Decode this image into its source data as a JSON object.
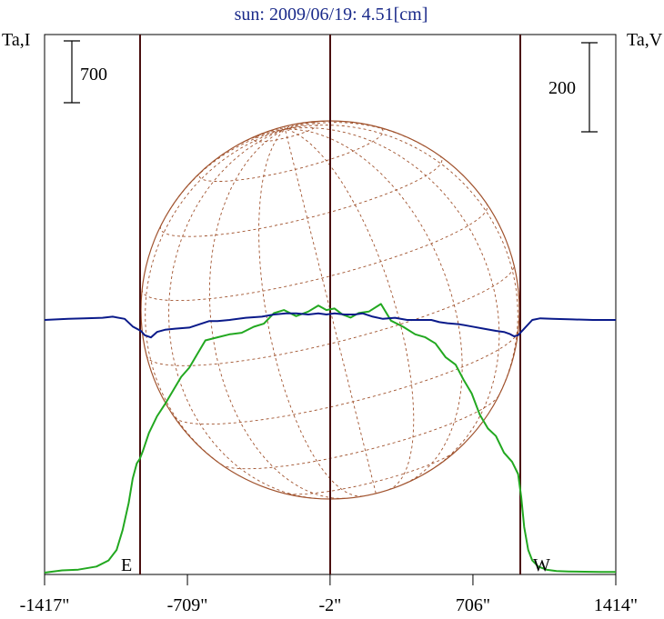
{
  "chart_data": {
    "type": "line",
    "title": "sun: 2009/06/19: 4.51[cm]",
    "left_axis_label": "Ta,I",
    "right_axis_label": "Ta,V",
    "left_scale_bar_label": "700",
    "right_scale_bar_label": "200",
    "east_label": "E",
    "west_label": "W",
    "x_tick_labels": [
      "-1417\"",
      "-709\"",
      "-2\"",
      "706\"",
      "1414\""
    ],
    "x_ticks": [
      -1417,
      -709,
      -2,
      706,
      1414
    ],
    "xlim": [
      -1417,
      1414
    ],
    "limb_x": [
      -945,
      945
    ],
    "center_x": -2,
    "solar_disk_grid": true,
    "series": [
      {
        "color": "#22a820",
        "x": [
          -1417,
          -1330,
          -1250,
          -1160,
          -1100,
          -1060,
          -1030,
          -1000,
          -980,
          -960,
          -945,
          -930,
          -900,
          -860,
          -820,
          -780,
          -740,
          -700,
          -660,
          -620,
          -560,
          -500,
          -440,
          -380,
          -330,
          -280,
          -230,
          -170,
          -110,
          -60,
          -20,
          20,
          60,
          100,
          140,
          190,
          250,
          300,
          360,
          420,
          470,
          520,
          570,
          620,
          660,
          700,
          740,
          780,
          820,
          860,
          900,
          930,
          945,
          960,
          980,
          1000,
          1030,
          1070,
          1120,
          1180,
          1260,
          1340,
          1414
        ],
        "y": [
          0,
          0.015,
          0.02,
          0.04,
          0.08,
          0.15,
          0.28,
          0.46,
          0.62,
          0.72,
          0.75,
          0.8,
          0.92,
          1.03,
          1.11,
          1.2,
          1.29,
          1.35,
          1.44,
          1.53,
          1.55,
          1.57,
          1.58,
          1.62,
          1.64,
          1.71,
          1.73,
          1.69,
          1.72,
          1.76,
          1.73,
          1.74,
          1.7,
          1.68,
          1.71,
          1.72,
          1.77,
          1.66,
          1.62,
          1.57,
          1.55,
          1.51,
          1.42,
          1.37,
          1.27,
          1.18,
          1.04,
          0.95,
          0.9,
          0.79,
          0.73,
          0.65,
          0.5,
          0.3,
          0.15,
          0.08,
          0.04,
          0.02,
          0.01,
          0.008,
          0.006,
          0.005,
          0.005
        ]
      },
      {
        "color": "#0a1a8a",
        "x": [
          -1417,
          -1300,
          -1220,
          -1130,
          -1080,
          -1020,
          -980,
          -940,
          -920,
          -890,
          -860,
          -820,
          -770,
          -700,
          -650,
          -600,
          -560,
          -500,
          -420,
          -340,
          -280,
          -220,
          -170,
          -110,
          -60,
          -20,
          20,
          70,
          120,
          160,
          210,
          260,
          320,
          380,
          440,
          500,
          540,
          580,
          640,
          700,
          760,
          820,
          860,
          890,
          910,
          930,
          960,
          1000,
          1040,
          1100,
          1200,
          1300,
          1414
        ],
        "y": [
          0,
          0.01,
          0.015,
          0.02,
          0.03,
          0.01,
          -0.06,
          -0.1,
          -0.14,
          -0.16,
          -0.11,
          -0.09,
          -0.08,
          -0.07,
          -0.04,
          -0.01,
          -0.01,
          0,
          0.02,
          0.03,
          0.05,
          0.06,
          0.06,
          0.05,
          0.06,
          0.05,
          0.06,
          0.05,
          0.05,
          0.06,
          0.03,
          0.01,
          0.02,
          0,
          0,
          0,
          -0.02,
          -0.03,
          -0.04,
          -0.06,
          -0.08,
          -0.1,
          -0.11,
          -0.13,
          -0.15,
          -0.14,
          -0.08,
          0,
          0.015,
          0.01,
          0.005,
          0,
          0
        ]
      }
    ]
  }
}
